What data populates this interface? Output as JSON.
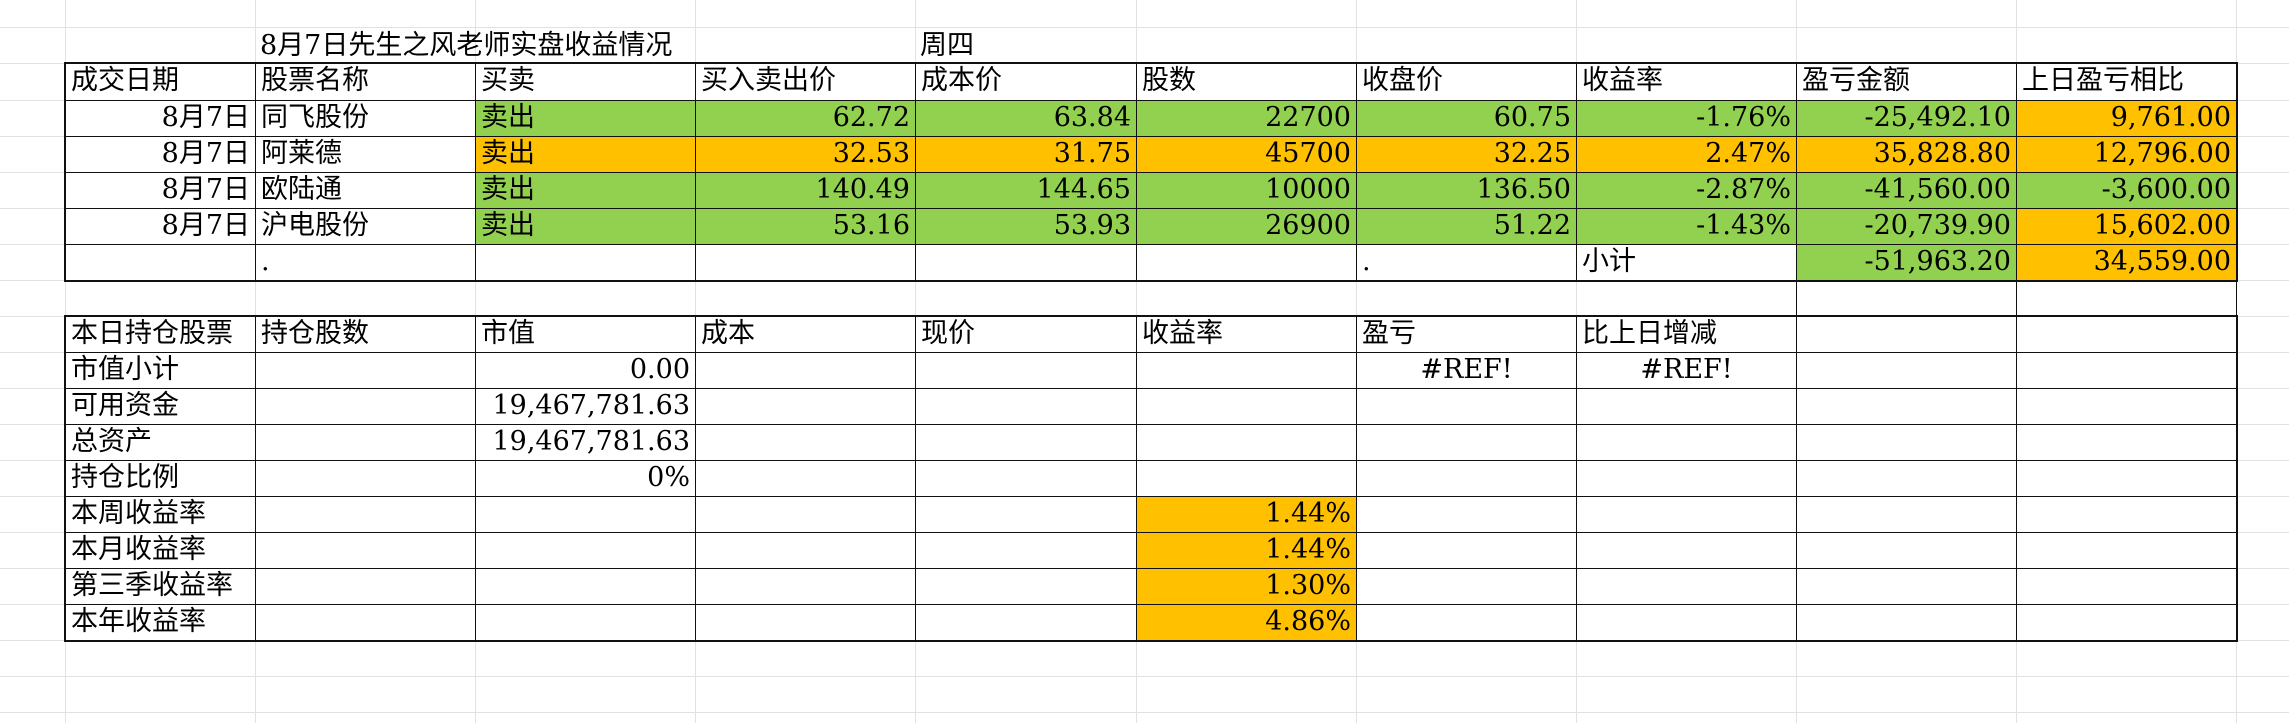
{
  "header": {
    "title": "8月7日先生之风老师实盘收益情况",
    "weekday": "周四"
  },
  "trade_table": {
    "columns": [
      "成交日期",
      "股票名称",
      "买卖",
      "买入卖出价",
      "成本价",
      "股数",
      "收盘价",
      "收益率",
      "盈亏金额",
      "上日盈亏相比"
    ],
    "rows": [
      {
        "date": "8月7日",
        "name": "同飞股份",
        "side": "卖出",
        "price": "62.72",
        "cost": "63.84",
        "shares": "22700",
        "close": "60.75",
        "rate": "-1.76%",
        "pnl": "-25,492.10",
        "prev": "9,761.00",
        "row_color": "#92d050",
        "prev_color": "#ffc000"
      },
      {
        "date": "8月7日",
        "name": "阿莱德",
        "side": "卖出",
        "price": "32.53",
        "cost": "31.75",
        "shares": "45700",
        "close": "32.25",
        "rate": "2.47%",
        "pnl": "35,828.80",
        "prev": "12,796.00",
        "row_color": "#ffc000",
        "prev_color": "#ffc000"
      },
      {
        "date": "8月7日",
        "name": "欧陆通",
        "side": "卖出",
        "price": "140.49",
        "cost": "144.65",
        "shares": "10000",
        "close": "136.50",
        "rate": "-2.87%",
        "pnl": "-41,560.00",
        "prev": "-3,600.00",
        "row_color": "#92d050",
        "prev_color": "#92d050"
      },
      {
        "date": "8月7日",
        "name": "沪电股份",
        "side": "卖出",
        "price": "53.16",
        "cost": "53.93",
        "shares": "26900",
        "close": "51.22",
        "rate": "-1.43%",
        "pnl": "-20,739.90",
        "prev": "15,602.00",
        "row_color": "#92d050",
        "prev_color": "#ffc000"
      }
    ],
    "subtotal": {
      "dot1": ".",
      "dot2": ".",
      "label": "小计",
      "pnl": "-51,963.20",
      "prev": "34,559.00"
    }
  },
  "holdings_table": {
    "columns": [
      "本日持仓股票",
      "持仓股数",
      "市值",
      "成本",
      "现价",
      "收益率",
      "盈亏",
      "比上日增减"
    ],
    "market_value_label": "市值小计",
    "market_value": "0.00",
    "pnl_error": "#REF!",
    "change_error": "#REF!",
    "available_funds_label": "可用资金",
    "available_funds": "19,467,781.63",
    "total_assets_label": "总资产",
    "total_assets": "19,467,781.63",
    "position_ratio_label": "持仓比例",
    "position_ratio": "0%",
    "returns": [
      {
        "label": "本周收益率",
        "value": "1.44%"
      },
      {
        "label": "本月收益率",
        "value": "1.44%"
      },
      {
        "label": "第三季收益率",
        "value": "1.30%"
      },
      {
        "label": "本年收益率",
        "value": "4.86%"
      }
    ]
  },
  "colors": {
    "green": "#92d050",
    "orange": "#ffc000",
    "border": "#111111",
    "grid": "#e2e2e2"
  }
}
